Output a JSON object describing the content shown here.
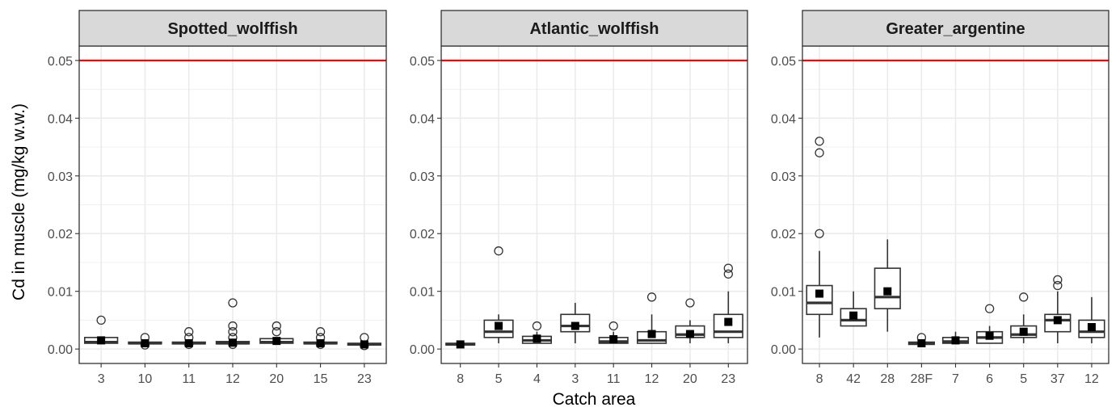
{
  "chart_data": {
    "type": "boxplot",
    "ylabel": "Cd in muscle (mg/kg w.w.)",
    "xlabel": "Catch area",
    "ylim": [
      -0.0025,
      0.0525
    ],
    "yticks": [
      0.0,
      0.01,
      0.02,
      0.03,
      0.04,
      0.05
    ],
    "ytick_labels": [
      "0.00",
      "0.01",
      "0.02",
      "0.03",
      "0.04",
      "0.05"
    ],
    "reference_line": {
      "y": 0.05,
      "color": "#ff0000"
    },
    "panels": [
      {
        "title": "Spotted_wolffish",
        "categories": [
          "3",
          "10",
          "11",
          "12",
          "20",
          "15",
          "23"
        ],
        "boxes": [
          {
            "q1": 0.001,
            "median": 0.0012,
            "q3": 0.002,
            "wlow": 0.001,
            "whigh": 0.002,
            "mean": 0.0015,
            "outliers": [
              0.005
            ]
          },
          {
            "q1": 0.0009,
            "median": 0.001,
            "q3": 0.0012,
            "wlow": 0.0009,
            "whigh": 0.0012,
            "mean": 0.001,
            "outliers": [
              0.002,
              0.0007
            ]
          },
          {
            "q1": 0.0009,
            "median": 0.001,
            "q3": 0.0012,
            "wlow": 0.0009,
            "whigh": 0.0012,
            "mean": 0.001,
            "outliers": [
              0.003,
              0.002,
              0.0008
            ]
          },
          {
            "q1": 0.0009,
            "median": 0.001,
            "q3": 0.0013,
            "wlow": 0.0009,
            "whigh": 0.0013,
            "mean": 0.0011,
            "outliers": [
              0.008,
              0.004,
              0.003,
              0.002,
              0.0008
            ]
          },
          {
            "q1": 0.001,
            "median": 0.0012,
            "q3": 0.0018,
            "wlow": 0.001,
            "whigh": 0.0018,
            "mean": 0.0014,
            "outliers": [
              0.004,
              0.003
            ]
          },
          {
            "q1": 0.0009,
            "median": 0.001,
            "q3": 0.0012,
            "wlow": 0.0009,
            "whigh": 0.0012,
            "mean": 0.001,
            "outliers": [
              0.003,
              0.002,
              0.0008
            ]
          },
          {
            "q1": 0.0007,
            "median": 0.0008,
            "q3": 0.001,
            "wlow": 0.0007,
            "whigh": 0.001,
            "mean": 0.0008,
            "outliers": [
              0.002,
              0.0006
            ]
          }
        ]
      },
      {
        "title": "Atlantic_wolffish",
        "categories": [
          "8",
          "5",
          "4",
          "3",
          "11",
          "12",
          "20",
          "23"
        ],
        "boxes": [
          {
            "q1": 0.0007,
            "median": 0.0008,
            "q3": 0.001,
            "wlow": 0.0006,
            "whigh": 0.001,
            "mean": 0.0008,
            "outliers": []
          },
          {
            "q1": 0.002,
            "median": 0.003,
            "q3": 0.005,
            "wlow": 0.001,
            "whigh": 0.006,
            "mean": 0.004,
            "outliers": [
              0.017
            ]
          },
          {
            "q1": 0.001,
            "median": 0.0015,
            "q3": 0.0022,
            "wlow": 0.001,
            "whigh": 0.003,
            "mean": 0.0018,
            "outliers": [
              0.004
            ]
          },
          {
            "q1": 0.003,
            "median": 0.004,
            "q3": 0.006,
            "wlow": 0.001,
            "whigh": 0.008,
            "mean": 0.004,
            "outliers": []
          },
          {
            "q1": 0.001,
            "median": 0.0013,
            "q3": 0.002,
            "wlow": 0.001,
            "whigh": 0.003,
            "mean": 0.0017,
            "outliers": [
              0.004
            ]
          },
          {
            "q1": 0.001,
            "median": 0.0015,
            "q3": 0.003,
            "wlow": 0.001,
            "whigh": 0.006,
            "mean": 0.0026,
            "outliers": [
              0.009
            ]
          },
          {
            "q1": 0.002,
            "median": 0.0025,
            "q3": 0.004,
            "wlow": 0.001,
            "whigh": 0.005,
            "mean": 0.0026,
            "outliers": [
              0.008
            ]
          },
          {
            "q1": 0.002,
            "median": 0.003,
            "q3": 0.006,
            "wlow": 0.001,
            "whigh": 0.01,
            "mean": 0.0047,
            "outliers": [
              0.014,
              0.013
            ]
          }
        ]
      },
      {
        "title": "Greater_argentine",
        "categories": [
          "8",
          "42",
          "28",
          "28F",
          "7",
          "6",
          "5",
          "37",
          "12"
        ],
        "boxes": [
          {
            "q1": 0.006,
            "median": 0.008,
            "q3": 0.011,
            "wlow": 0.002,
            "whigh": 0.017,
            "mean": 0.0096,
            "outliers": [
              0.036,
              0.034,
              0.02
            ]
          },
          {
            "q1": 0.004,
            "median": 0.005,
            "q3": 0.007,
            "wlow": 0.004,
            "whigh": 0.01,
            "mean": 0.0058,
            "outliers": []
          },
          {
            "q1": 0.007,
            "median": 0.009,
            "q3": 0.014,
            "wlow": 0.003,
            "whigh": 0.019,
            "mean": 0.01,
            "outliers": []
          },
          {
            "q1": 0.0008,
            "median": 0.001,
            "q3": 0.0012,
            "wlow": 0.0008,
            "whigh": 0.0012,
            "mean": 0.001,
            "outliers": [
              0.002
            ]
          },
          {
            "q1": 0.001,
            "median": 0.0013,
            "q3": 0.002,
            "wlow": 0.001,
            "whigh": 0.003,
            "mean": 0.0015,
            "outliers": []
          },
          {
            "q1": 0.001,
            "median": 0.002,
            "q3": 0.003,
            "wlow": 0.001,
            "whigh": 0.004,
            "mean": 0.0023,
            "outliers": [
              0.007
            ]
          },
          {
            "q1": 0.002,
            "median": 0.0025,
            "q3": 0.004,
            "wlow": 0.001,
            "whigh": 0.006,
            "mean": 0.003,
            "outliers": [
              0.009
            ]
          },
          {
            "q1": 0.003,
            "median": 0.005,
            "q3": 0.006,
            "wlow": 0.001,
            "whigh": 0.01,
            "mean": 0.005,
            "outliers": [
              0.012,
              0.011
            ]
          },
          {
            "q1": 0.002,
            "median": 0.003,
            "q3": 0.005,
            "wlow": 0.001,
            "whigh": 0.009,
            "mean": 0.0038,
            "outliers": []
          }
        ]
      }
    ]
  }
}
